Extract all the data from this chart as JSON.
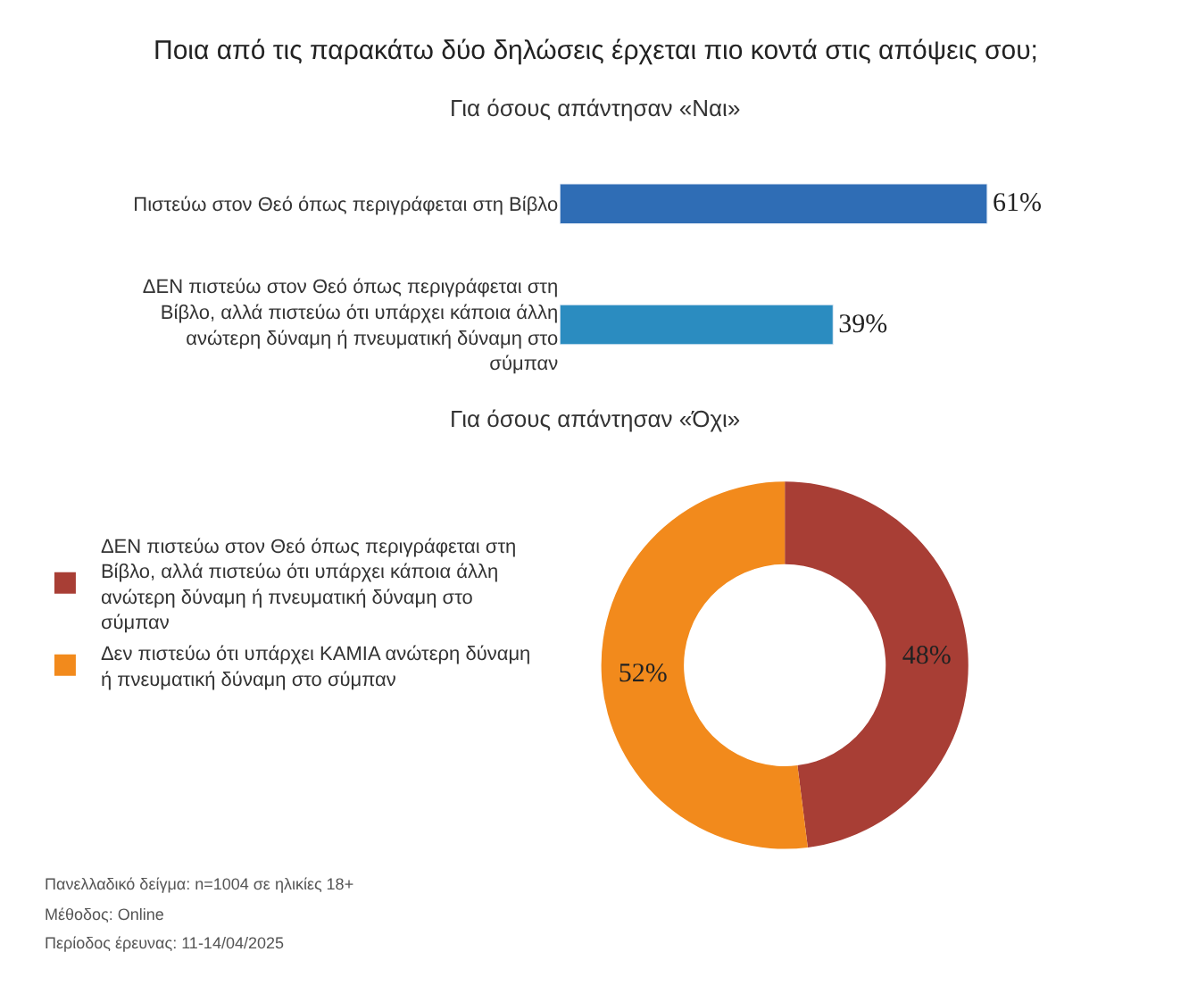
{
  "chart_data": [
    {
      "type": "bar",
      "orientation": "horizontal",
      "title": "Ποια από τις παρακάτω δύο δηλώσεις έρχεται πιο κοντά στις απόψεις σου;",
      "subtitle": "Για όσους απάντησαν «Ναι»",
      "categories": [
        "Πιστεύω στον Θεό όπως περιγράφεται στη Βίβλο",
        "ΔΕΝ πιστεύω στον Θεό όπως περιγράφεται στη Βίβλο, αλλά πιστεύω ότι υπάρχει κάποια άλλη ανώτερη δύναμη ή πνευματική δύναμη στο σύμπαν"
      ],
      "values": [
        61,
        39
      ],
      "colors": [
        "#2f6db5",
        "#2b8cc0"
      ],
      "value_labels": [
        "61%",
        "39%"
      ]
    },
    {
      "type": "donut",
      "title": "Για όσους απάντησαν «Όχι»",
      "categories": [
        "ΔΕΝ πιστεύω στον Θεό όπως περιγράφεται στη Βίβλο, αλλά πιστεύω ότι υπάρχει κάποια άλλη ανώτερη δύναμη ή πνευματική δύναμη στο σύμπαν",
        "Δεν πιστεύω ότι υπάρχει ΚΑΜΙΑ ανώτερη δύναμη ή πνευματική δύναμη στο σύμπαν"
      ],
      "values": [
        48,
        52
      ],
      "colors": [
        "#a83e35",
        "#f28a1c"
      ],
      "value_labels": [
        "48%",
        "52%"
      ],
      "legend": "left",
      "annotations": [
        "Πανελλαδικό δείγμα: n=1004 σε ηλικίες 18+",
        "Μέθοδος: Online",
        "Περίοδος έρευνας: 11-14/04/2025"
      ]
    }
  ]
}
